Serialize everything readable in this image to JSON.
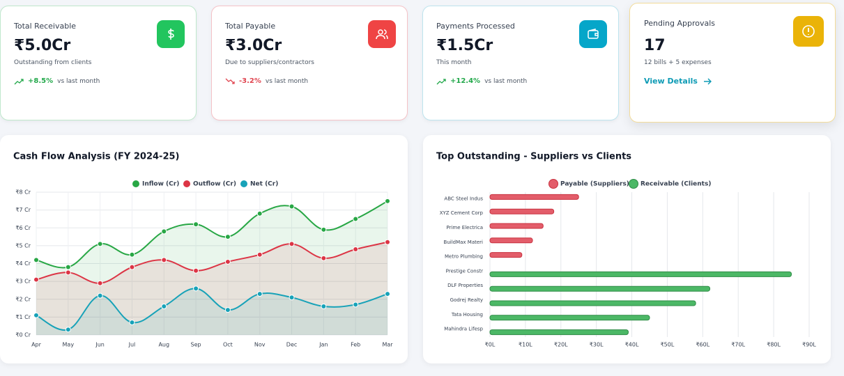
{
  "cards": [
    {
      "title": "Total Receivable",
      "value": "₹5.0Cr",
      "subtitle": "Outstanding from clients",
      "change": "+8.5%",
      "change_label": "vs last month"
    },
    {
      "title": "Total Payable",
      "value": "₹3.0Cr",
      "subtitle": "Due to suppliers/contractors",
      "change": "-3.2%",
      "change_label": "vs last month"
    },
    {
      "title": "Payments Processed",
      "value": "₹1.5Cr",
      "subtitle": "This month",
      "change": "+12.4%",
      "change_label": "vs last month"
    },
    {
      "title": "Pending Approvals",
      "value": 17,
      "subtitle": "12 bills + 5 expenses",
      "link": "View Details"
    }
  ],
  "chart_data": [
    {
      "type": "line",
      "title": "Cash Flow Analysis (FY 2024-25)",
      "categories": [
        "Apr",
        "May",
        "Jun",
        "Jul",
        "Aug",
        "Sep",
        "Oct",
        "Nov",
        "Dec",
        "Jan",
        "Feb",
        "Mar"
      ],
      "series": [
        {
          "name": "Inflow (Cr)",
          "color": "#28a745",
          "values": [
            4.2,
            3.8,
            5.1,
            4.5,
            5.8,
            6.2,
            5.5,
            6.8,
            7.2,
            5.9,
            6.5,
            7.5
          ]
        },
        {
          "name": "Outflow (Cr)",
          "color": "#dc3545",
          "values": [
            3.1,
            3.5,
            2.9,
            3.8,
            4.2,
            3.6,
            4.1,
            4.5,
            5.1,
            4.3,
            4.8,
            5.2
          ]
        },
        {
          "name": "Net (Cr)",
          "color": "#17a2b8",
          "values": [
            1.1,
            0.3,
            2.2,
            0.7,
            1.6,
            2.6,
            1.4,
            2.3,
            2.1,
            1.6,
            1.7,
            2.3
          ]
        }
      ],
      "ylim": [
        0,
        8
      ],
      "yticks": [
        {
          "value": 0,
          "label": "₹0 Cr"
        },
        {
          "value": 1,
          "label": "₹1 Cr"
        },
        {
          "value": 2,
          "label": "₹2 Cr"
        },
        {
          "value": 3,
          "label": "₹3 Cr"
        },
        {
          "value": 4,
          "label": "₹4 Cr"
        },
        {
          "value": 5,
          "label": "₹5 Cr"
        },
        {
          "value": 6,
          "label": "₹6 Cr"
        },
        {
          "value": 7,
          "label": "₹7 Cr"
        },
        {
          "value": 8,
          "label": "₹8 Cr"
        }
      ],
      "grid": true,
      "legend": "top",
      "area": true
    },
    {
      "type": "hbar",
      "title": "Top Outstanding - Suppliers vs Clients",
      "categories": [
        "ABC Steel Indus",
        "XYZ Cement Corp",
        "Prime Electrica",
        "BuildMax Materi",
        "Metro Plumbing",
        "Prestige Constr",
        "DLF Properties",
        "Godrej Realty",
        "Tata Housing",
        "Mahindra Lifesp"
      ],
      "series": [
        {
          "name": "Payable (Suppliers)",
          "color": "#e35d6a",
          "values": [
            25,
            18,
            15,
            12,
            9,
            null,
            null,
            null,
            null,
            null
          ]
        },
        {
          "name": "Receivable (Clients)",
          "color": "#4cb866",
          "values": [
            null,
            null,
            null,
            null,
            null,
            85,
            62,
            58,
            45,
            39
          ]
        }
      ],
      "xlim": [
        0,
        90
      ],
      "xticks": [
        {
          "value": 0,
          "label": "₹0L"
        },
        {
          "value": 10,
          "label": "₹10L"
        },
        {
          "value": 20,
          "label": "₹20L"
        },
        {
          "value": 30,
          "label": "₹30L"
        },
        {
          "value": 40,
          "label": "₹40L"
        },
        {
          "value": 50,
          "label": "₹50L"
        },
        {
          "value": 60,
          "label": "₹60L"
        },
        {
          "value": 70,
          "label": "₹70L"
        },
        {
          "value": 80,
          "label": "₹80L"
        },
        {
          "value": 90,
          "label": "₹90L"
        }
      ],
      "grid": true,
      "legend": "top"
    }
  ]
}
